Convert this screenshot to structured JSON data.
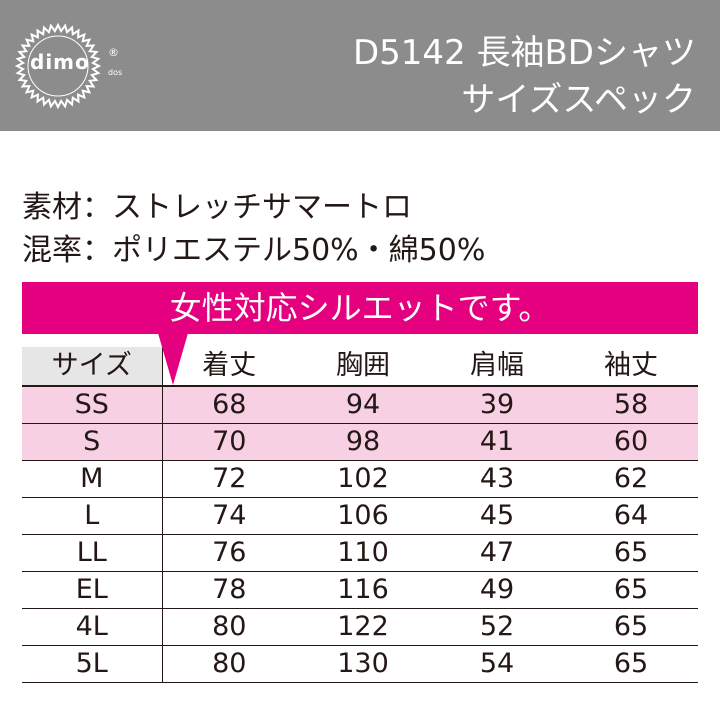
{
  "header": {
    "brand": "dimo",
    "brand_mark": "®",
    "brand_sub": "dos",
    "title_line1": "D5142 長袖BDシャツ",
    "title_line2": "サイズスペック"
  },
  "material": {
    "line1": "素材：ストレッチサマートロ",
    "line2": "混率：ポリエステル50%・綿50%"
  },
  "banner": {
    "text": "女性対応シルエットです。"
  },
  "colors": {
    "header_bg": "#8c8c8c",
    "accent": "#e4007f",
    "highlight_row": "#f8d0e4",
    "head_cell": "#e6e6e6"
  },
  "table": {
    "headers": [
      "サイズ",
      "着丈",
      "胸囲",
      "肩幅",
      "袖丈"
    ],
    "rows": [
      {
        "size": "SS",
        "length": "68",
        "chest": "94",
        "shoulder": "39",
        "sleeve": "58",
        "highlight": true
      },
      {
        "size": "S",
        "length": "70",
        "chest": "98",
        "shoulder": "41",
        "sleeve": "60",
        "highlight": true
      },
      {
        "size": "M",
        "length": "72",
        "chest": "102",
        "shoulder": "43",
        "sleeve": "62",
        "highlight": false
      },
      {
        "size": "L",
        "length": "74",
        "chest": "106",
        "shoulder": "45",
        "sleeve": "64",
        "highlight": false
      },
      {
        "size": "LL",
        "length": "76",
        "chest": "110",
        "shoulder": "47",
        "sleeve": "65",
        "highlight": false
      },
      {
        "size": "EL",
        "length": "78",
        "chest": "116",
        "shoulder": "49",
        "sleeve": "65",
        "highlight": false
      },
      {
        "size": "4L",
        "length": "80",
        "chest": "122",
        "shoulder": "52",
        "sleeve": "65",
        "highlight": false
      },
      {
        "size": "5L",
        "length": "80",
        "chest": "130",
        "shoulder": "54",
        "sleeve": "65",
        "highlight": false
      }
    ]
  }
}
